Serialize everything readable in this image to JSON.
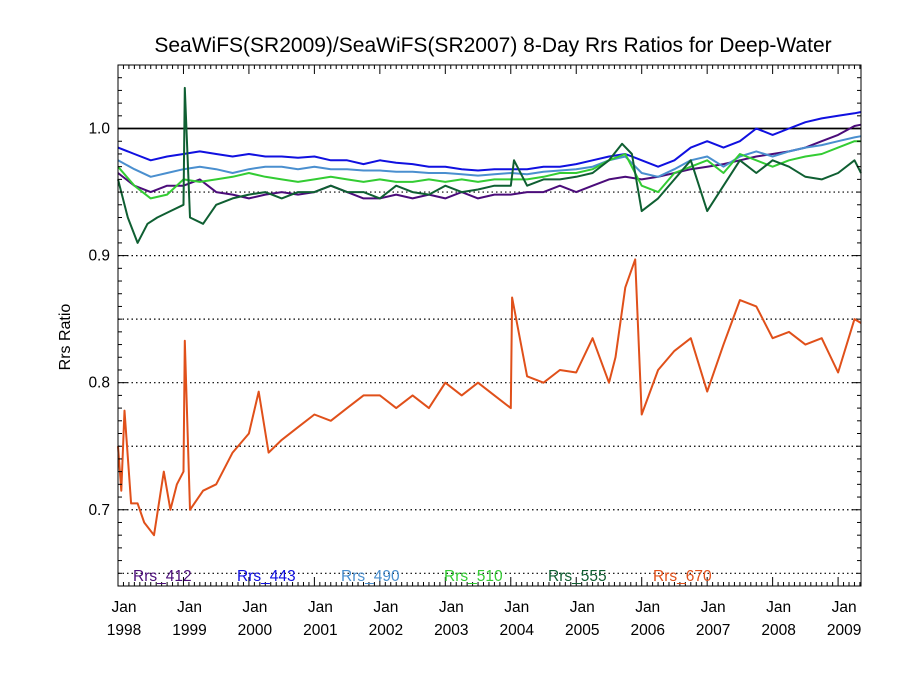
{
  "chart_data": {
    "type": "line",
    "title": "SeaWiFS(SR2009)/SeaWiFS(SR2007) 8-Day Rrs Ratios for Deep-Water",
    "xlabel": "",
    "ylabel": "Rrs Ratio",
    "xlim": [
      1998.0,
      2009.35
    ],
    "ylim": [
      0.64,
      1.05
    ],
    "x_ticks": [
      {
        "value": 1998.0,
        "month": "Jan",
        "year": "1998"
      },
      {
        "value": 1999.0,
        "month": "Jan",
        "year": "1999"
      },
      {
        "value": 2000.0,
        "month": "Jan",
        "year": "2000"
      },
      {
        "value": 2001.0,
        "month": "Jan",
        "year": "2001"
      },
      {
        "value": 2002.0,
        "month": "Jan",
        "year": "2002"
      },
      {
        "value": 2003.0,
        "month": "Jan",
        "year": "2003"
      },
      {
        "value": 2004.0,
        "month": "Jan",
        "year": "2004"
      },
      {
        "value": 2005.0,
        "month": "Jan",
        "year": "2005"
      },
      {
        "value": 2006.0,
        "month": "Jan",
        "year": "2006"
      },
      {
        "value": 2007.0,
        "month": "Jan",
        "year": "2007"
      },
      {
        "value": 2008.0,
        "month": "Jan",
        "year": "2008"
      },
      {
        "value": 2009.0,
        "month": "Jan",
        "year": "2009"
      }
    ],
    "y_ticks": [
      {
        "value": 0.7,
        "label": "0.7"
      },
      {
        "value": 0.8,
        "label": "0.8"
      },
      {
        "value": 0.9,
        "label": "0.9"
      },
      {
        "value": 1.0,
        "label": "1.0"
      }
    ],
    "reference_line": {
      "value": 1.0,
      "style": "solid",
      "color": "#000000"
    },
    "dotted_lines": [
      0.65,
      0.7,
      0.75,
      0.8,
      0.85,
      0.9,
      0.95
    ],
    "legend_placement": "bottom",
    "series": [
      {
        "name": "Rrs_412",
        "color": "#4B0C7A",
        "x": [
          1998.0,
          1998.25,
          1998.5,
          1998.75,
          1999.0,
          1999.25,
          1999.5,
          1999.75,
          2000.0,
          2000.25,
          2000.5,
          2000.75,
          2001.0,
          2001.25,
          2001.5,
          2001.75,
          2002.0,
          2002.25,
          2002.5,
          2002.75,
          2003.0,
          2003.25,
          2003.5,
          2003.75,
          2004.0,
          2004.25,
          2004.5,
          2004.75,
          2005.0,
          2005.25,
          2005.5,
          2005.75,
          2006.0,
          2006.25,
          2006.5,
          2006.75,
          2007.0,
          2007.25,
          2007.5,
          2007.75,
          2008.0,
          2008.25,
          2008.5,
          2008.75,
          2009.0,
          2009.25,
          2009.35
        ],
        "y": [
          0.965,
          0.955,
          0.95,
          0.955,
          0.955,
          0.96,
          0.95,
          0.948,
          0.945,
          0.948,
          0.95,
          0.948,
          0.95,
          0.955,
          0.95,
          0.945,
          0.945,
          0.948,
          0.945,
          0.948,
          0.945,
          0.95,
          0.945,
          0.948,
          0.948,
          0.95,
          0.95,
          0.955,
          0.95,
          0.955,
          0.96,
          0.962,
          0.96,
          0.962,
          0.965,
          0.968,
          0.97,
          0.972,
          0.975,
          0.978,
          0.98,
          0.982,
          0.985,
          0.99,
          0.995,
          1.002,
          1.003
        ]
      },
      {
        "name": "Rrs_443",
        "color": "#1010E0",
        "x": [
          1998.0,
          1998.25,
          1998.5,
          1998.75,
          1999.0,
          1999.25,
          1999.5,
          1999.75,
          2000.0,
          2000.25,
          2000.5,
          2000.75,
          2001.0,
          2001.25,
          2001.5,
          2001.75,
          2002.0,
          2002.25,
          2002.5,
          2002.75,
          2003.0,
          2003.25,
          2003.5,
          2003.75,
          2004.0,
          2004.25,
          2004.5,
          2004.75,
          2005.0,
          2005.25,
          2005.5,
          2005.75,
          2006.0,
          2006.25,
          2006.5,
          2006.75,
          2007.0,
          2007.25,
          2007.5,
          2007.75,
          2008.0,
          2008.25,
          2008.5,
          2008.75,
          2009.0,
          2009.25,
          2009.35
        ],
        "y": [
          0.985,
          0.98,
          0.975,
          0.978,
          0.98,
          0.982,
          0.98,
          0.978,
          0.98,
          0.978,
          0.978,
          0.977,
          0.978,
          0.975,
          0.975,
          0.972,
          0.975,
          0.973,
          0.972,
          0.97,
          0.97,
          0.968,
          0.967,
          0.968,
          0.968,
          0.968,
          0.97,
          0.97,
          0.972,
          0.975,
          0.978,
          0.98,
          0.975,
          0.97,
          0.975,
          0.985,
          0.99,
          0.985,
          0.99,
          1.0,
          0.995,
          1.0,
          1.005,
          1.008,
          1.01,
          1.012,
          1.013
        ]
      },
      {
        "name": "Rrs_490",
        "color": "#4A8FCF",
        "x": [
          1998.0,
          1998.25,
          1998.5,
          1998.75,
          1999.0,
          1999.25,
          1999.5,
          1999.75,
          2000.0,
          2000.25,
          2000.5,
          2000.75,
          2001.0,
          2001.25,
          2001.5,
          2001.75,
          2002.0,
          2002.25,
          2002.5,
          2002.75,
          2003.0,
          2003.25,
          2003.5,
          2003.75,
          2004.0,
          2004.25,
          2004.5,
          2004.75,
          2005.0,
          2005.25,
          2005.5,
          2005.75,
          2006.0,
          2006.25,
          2006.5,
          2006.75,
          2007.0,
          2007.25,
          2007.5,
          2007.75,
          2008.0,
          2008.25,
          2008.5,
          2008.75,
          2009.0,
          2009.25,
          2009.35
        ],
        "y": [
          0.975,
          0.968,
          0.962,
          0.965,
          0.968,
          0.97,
          0.968,
          0.965,
          0.968,
          0.97,
          0.97,
          0.968,
          0.97,
          0.968,
          0.968,
          0.967,
          0.967,
          0.966,
          0.966,
          0.965,
          0.965,
          0.964,
          0.963,
          0.964,
          0.965,
          0.964,
          0.966,
          0.967,
          0.968,
          0.97,
          0.975,
          0.978,
          0.965,
          0.962,
          0.968,
          0.975,
          0.978,
          0.97,
          0.978,
          0.982,
          0.978,
          0.982,
          0.985,
          0.987,
          0.99,
          0.993,
          0.994
        ]
      },
      {
        "name": "Rrs_510",
        "color": "#33CC33",
        "x": [
          1998.0,
          1998.25,
          1998.5,
          1998.75,
          1999.0,
          1999.25,
          1999.5,
          1999.75,
          2000.0,
          2000.25,
          2000.5,
          2000.75,
          2001.0,
          2001.25,
          2001.5,
          2001.75,
          2002.0,
          2002.25,
          2002.5,
          2002.75,
          2003.0,
          2003.25,
          2003.5,
          2003.75,
          2004.0,
          2004.25,
          2004.5,
          2004.75,
          2005.0,
          2005.25,
          2005.5,
          2005.75,
          2006.0,
          2006.25,
          2006.5,
          2006.75,
          2007.0,
          2007.25,
          2007.5,
          2007.75,
          2008.0,
          2008.25,
          2008.5,
          2008.75,
          2009.0,
          2009.25,
          2009.35
        ],
        "y": [
          0.97,
          0.955,
          0.945,
          0.948,
          0.96,
          0.958,
          0.96,
          0.962,
          0.965,
          0.962,
          0.96,
          0.958,
          0.96,
          0.962,
          0.96,
          0.958,
          0.96,
          0.958,
          0.958,
          0.96,
          0.958,
          0.96,
          0.958,
          0.96,
          0.96,
          0.96,
          0.962,
          0.965,
          0.965,
          0.968,
          0.975,
          0.98,
          0.955,
          0.95,
          0.965,
          0.97,
          0.975,
          0.965,
          0.98,
          0.975,
          0.97,
          0.975,
          0.978,
          0.98,
          0.985,
          0.99,
          0.99
        ]
      },
      {
        "name": "Rrs_555",
        "color": "#0F5F32",
        "x": [
          1998.0,
          1998.15,
          1998.3,
          1998.45,
          1998.6,
          1998.8,
          1999.0,
          1999.02,
          1999.1,
          1999.3,
          1999.5,
          1999.75,
          2000.0,
          2000.25,
          2000.5,
          2000.75,
          2001.0,
          2001.25,
          2001.5,
          2001.75,
          2002.0,
          2002.25,
          2002.5,
          2002.75,
          2003.0,
          2003.25,
          2003.5,
          2003.75,
          2004.0,
          2004.05,
          2004.25,
          2004.5,
          2004.75,
          2005.0,
          2005.25,
          2005.5,
          2005.7,
          2005.85,
          2006.0,
          2006.25,
          2006.5,
          2006.75,
          2007.0,
          2007.25,
          2007.5,
          2007.75,
          2008.0,
          2008.25,
          2008.5,
          2008.75,
          2009.0,
          2009.25,
          2009.35
        ],
        "y": [
          0.96,
          0.93,
          0.91,
          0.925,
          0.93,
          0.935,
          0.94,
          1.032,
          0.93,
          0.925,
          0.94,
          0.945,
          0.948,
          0.95,
          0.945,
          0.95,
          0.95,
          0.955,
          0.95,
          0.95,
          0.945,
          0.955,
          0.95,
          0.948,
          0.955,
          0.95,
          0.952,
          0.955,
          0.955,
          0.975,
          0.955,
          0.96,
          0.96,
          0.962,
          0.965,
          0.975,
          0.988,
          0.98,
          0.935,
          0.945,
          0.96,
          0.975,
          0.935,
          0.955,
          0.975,
          0.965,
          0.975,
          0.97,
          0.962,
          0.96,
          0.965,
          0.975,
          0.965
        ]
      },
      {
        "name": "Rrs_670",
        "color": "#E0501A",
        "x": [
          1998.0,
          1998.05,
          1998.1,
          1998.2,
          1998.3,
          1998.4,
          1998.55,
          1998.7,
          1998.8,
          1998.9,
          1999.0,
          1999.02,
          1999.1,
          1999.3,
          1999.5,
          1999.75,
          2000.0,
          2000.15,
          2000.3,
          2000.5,
          2000.75,
          2001.0,
          2001.25,
          2001.5,
          2001.75,
          2002.0,
          2002.25,
          2002.5,
          2002.75,
          2003.0,
          2003.25,
          2003.5,
          2003.75,
          2004.0,
          2004.02,
          2004.25,
          2004.5,
          2004.75,
          2005.0,
          2005.25,
          2005.5,
          2005.6,
          2005.75,
          2005.9,
          2006.0,
          2006.25,
          2006.5,
          2006.75,
          2007.0,
          2007.25,
          2007.5,
          2007.75,
          2008.0,
          2008.25,
          2008.5,
          2008.75,
          2009.0,
          2009.25,
          2009.35
        ],
        "y": [
          0.75,
          0.715,
          0.778,
          0.705,
          0.705,
          0.69,
          0.68,
          0.73,
          0.7,
          0.72,
          0.73,
          0.833,
          0.7,
          0.715,
          0.72,
          0.745,
          0.76,
          0.793,
          0.745,
          0.755,
          0.765,
          0.775,
          0.77,
          0.78,
          0.79,
          0.79,
          0.78,
          0.79,
          0.78,
          0.8,
          0.79,
          0.8,
          0.79,
          0.78,
          0.867,
          0.805,
          0.8,
          0.81,
          0.808,
          0.835,
          0.8,
          0.82,
          0.875,
          0.897,
          0.775,
          0.81,
          0.825,
          0.835,
          0.793,
          0.83,
          0.865,
          0.86,
          0.835,
          0.84,
          0.83,
          0.835,
          0.808,
          0.85,
          0.847
        ]
      }
    ]
  }
}
